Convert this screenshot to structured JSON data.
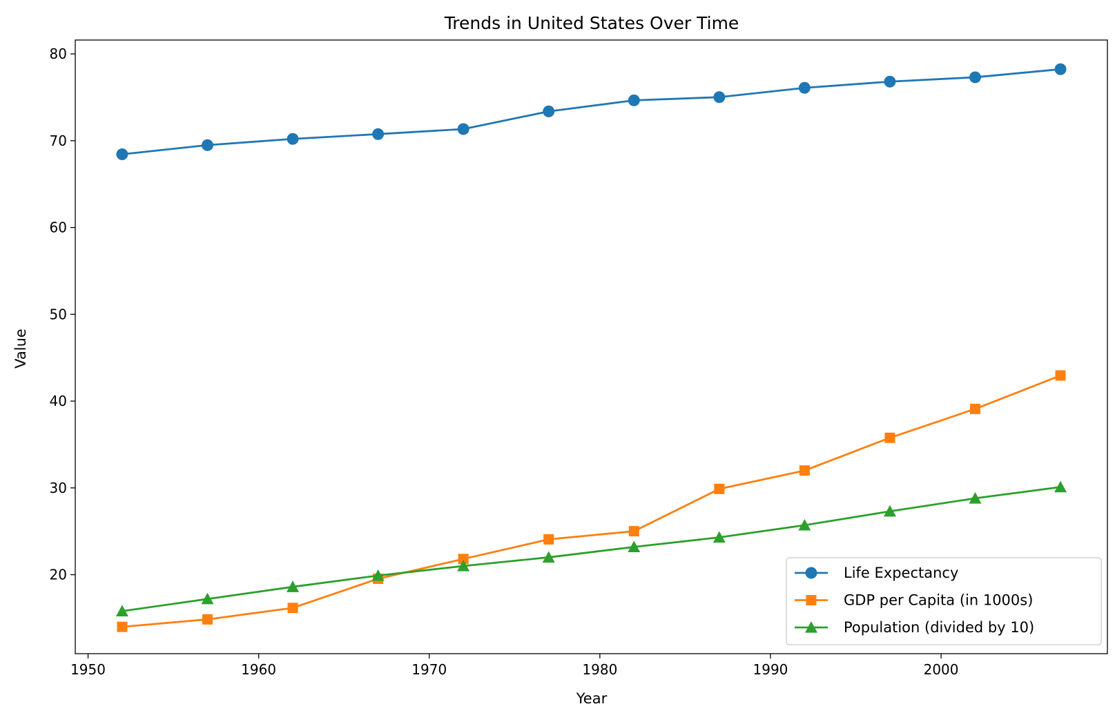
{
  "chart_data": {
    "type": "line",
    "title": "Trends in United States Over Time",
    "xlabel": "Year",
    "ylabel": "Value",
    "xlim": [
      1949.25,
      2009.75
    ],
    "ylim": [
      10.9,
      81.6
    ],
    "xticks": [
      1950,
      1960,
      1970,
      1980,
      1990,
      2000
    ],
    "yticks": [
      20,
      30,
      40,
      50,
      60,
      70,
      80
    ],
    "grid": false,
    "legend_position": "lower-right",
    "x": [
      1952,
      1957,
      1962,
      1967,
      1972,
      1977,
      1982,
      1987,
      1992,
      1997,
      2002,
      2007
    ],
    "series": [
      {
        "name": "Life Expectancy",
        "color": "#1f77b4",
        "marker": "circle",
        "values": [
          68.44,
          69.49,
          70.21,
          70.76,
          71.34,
          73.38,
          74.65,
          75.02,
          76.09,
          76.81,
          77.31,
          78.24
        ]
      },
      {
        "name": "GDP per Capita (in 1000s)",
        "color": "#ff7f0e",
        "marker": "square",
        "values": [
          13.99,
          14.85,
          16.17,
          19.53,
          21.81,
          24.07,
          25.01,
          29.88,
          32.0,
          35.77,
          39.1,
          42.95
        ]
      },
      {
        "name": "Population (divided by 10)",
        "color": "#2ca02c",
        "marker": "triangle",
        "values": [
          15.8,
          17.2,
          18.6,
          19.9,
          21.0,
          22.0,
          23.2,
          24.3,
          25.7,
          27.3,
          28.8,
          30.1
        ]
      }
    ]
  }
}
